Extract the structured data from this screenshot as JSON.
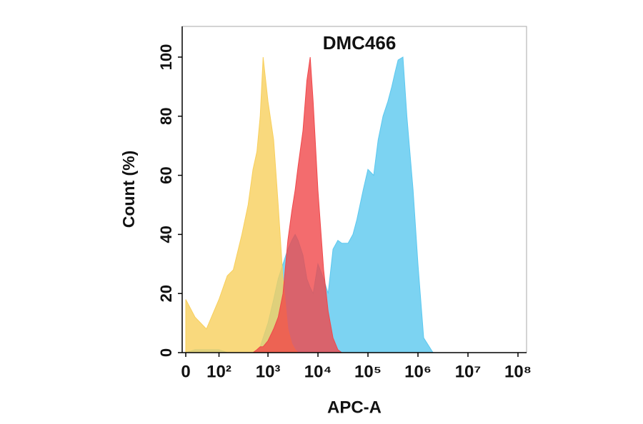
{
  "chart_data": {
    "type": "area",
    "title": "DMC466",
    "xlabel": "APC-A",
    "ylabel": "Count  (%)",
    "xscale": "biexponential",
    "x": [
      0,
      20,
      50,
      100,
      150,
      200,
      300,
      400,
      500,
      600,
      700,
      800,
      1000,
      1300,
      1600,
      2000,
      2500,
      3000,
      3500,
      4000,
      5000,
      6000,
      7000,
      8000,
      10000,
      13000,
      16000,
      20000,
      25000,
      30000,
      40000,
      50000,
      60000,
      80000,
      100000,
      130000,
      160000,
      200000,
      250000,
      300000,
      350000,
      400000,
      500000,
      600000,
      800000,
      1000000,
      1300000,
      2000000,
      5000000,
      100000000
    ],
    "series": [
      {
        "color": "#5bc8ef",
        "values": [
          0,
          1,
          1,
          1,
          0,
          0,
          0,
          0,
          0,
          1,
          2,
          5,
          10,
          18,
          25,
          30,
          35,
          38,
          40,
          38,
          33,
          25,
          22,
          20,
          30,
          25,
          20,
          35,
          38,
          37,
          37,
          40,
          45,
          55,
          62,
          60,
          72,
          80,
          85,
          90,
          95,
          99,
          100,
          80,
          55,
          30,
          5,
          0,
          0,
          0
        ]
      },
      {
        "color": "#f8cf5c",
        "values": [
          18,
          12,
          8,
          18,
          26,
          28,
          40,
          50,
          62,
          68,
          80,
          100,
          85,
          72,
          50,
          25,
          8,
          3,
          1,
          0,
          0,
          0,
          0,
          0,
          0,
          0,
          0,
          0,
          0,
          0,
          0,
          0,
          0,
          0,
          0,
          0,
          0,
          0,
          0,
          0,
          0,
          0,
          0,
          0,
          0,
          0,
          0,
          0,
          0,
          0
        ]
      },
      {
        "color": "#f0474a",
        "values": [
          0,
          0,
          0,
          0,
          0,
          0,
          0,
          0,
          0,
          1,
          2,
          2,
          4,
          8,
          12,
          20,
          38,
          48,
          55,
          63,
          75,
          92,
          100,
          85,
          55,
          28,
          14,
          5,
          1,
          0,
          0,
          0,
          0,
          0,
          0,
          0,
          0,
          0,
          0,
          0,
          0,
          0,
          0,
          0,
          0,
          0,
          0,
          0,
          0,
          0
        ]
      }
    ],
    "xlim": [
      0,
      100000000
    ],
    "xticks": [
      0,
      {
        "value": 100,
        "label": "10²"
      },
      {
        "value": 1000,
        "label": "10³"
      },
      {
        "value": 10000,
        "label": "10⁴"
      },
      {
        "value": 100000,
        "label": "10⁵"
      },
      {
        "value": 1000000,
        "label": "10⁶"
      },
      {
        "value": 10000000,
        "label": "10⁷"
      },
      {
        "value": 100000000,
        "label": "10⁸"
      }
    ],
    "ylim": [
      0,
      110
    ],
    "yticks": [
      0,
      20,
      40,
      60,
      80,
      100
    ]
  }
}
